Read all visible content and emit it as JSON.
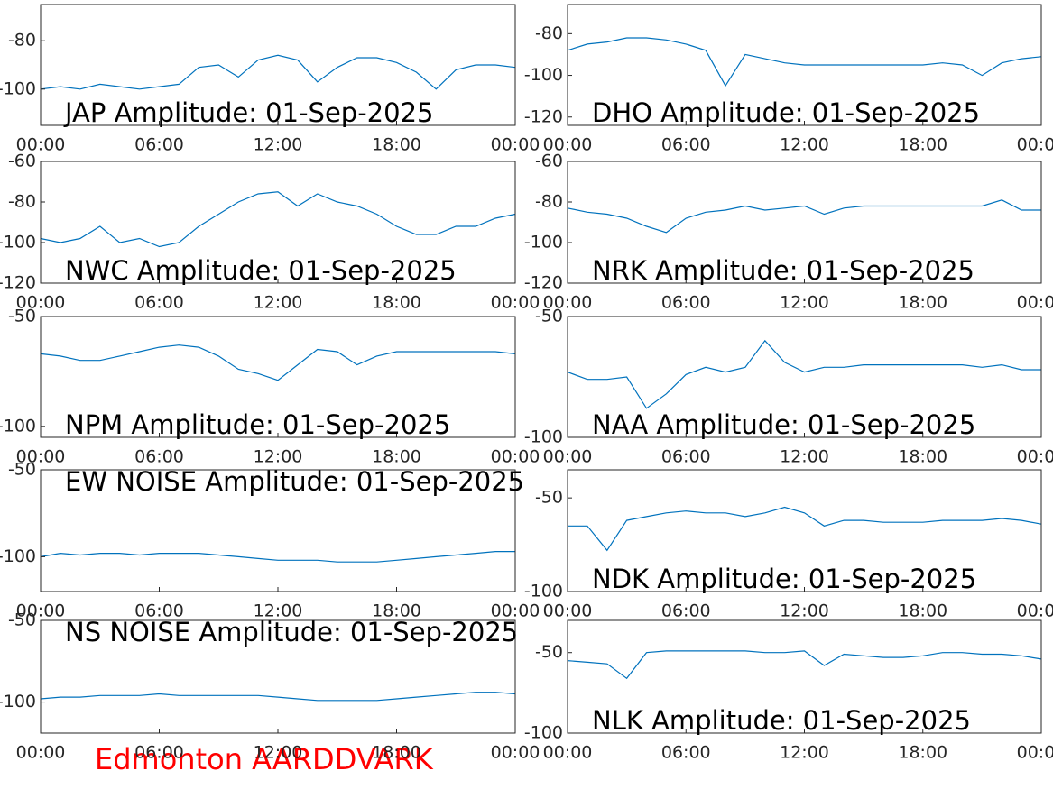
{
  "chart_data": [
    {
      "type": "line",
      "title": "JAP Amplitude: 01-Sep-2025",
      "color": "#0072bd",
      "x": [
        0,
        1,
        2,
        3,
        4,
        5,
        6,
        7,
        8,
        9,
        10,
        11,
        12,
        13,
        14,
        15,
        16,
        17,
        18,
        19,
        20,
        21,
        22,
        23,
        24
      ],
      "values": [
        -100,
        -99,
        -100,
        -98,
        -99,
        -100,
        -99,
        -98,
        -91,
        -90,
        -95,
        -88,
        -86,
        -88,
        -97,
        -91,
        -87,
        -87,
        -89,
        -93,
        -100,
        -92,
        -90,
        -90,
        -91
      ],
      "xlim": [
        0,
        24
      ],
      "xticks": [
        {
          "value": 0,
          "label": "00:00"
        },
        {
          "value": 6,
          "label": "06:00"
        },
        {
          "value": 12,
          "label": "12:00"
        },
        {
          "value": 18,
          "label": "18:00"
        },
        {
          "value": 24,
          "label": "00:00"
        }
      ],
      "ylim": [
        -115,
        -65
      ],
      "yticks": [
        -100,
        -80
      ]
    },
    {
      "type": "line",
      "title": "DHO Amplitude: 01-Sep-2025",
      "color": "#0072bd",
      "x": [
        0,
        1,
        2,
        3,
        4,
        5,
        6,
        7,
        8,
        9,
        10,
        11,
        12,
        13,
        14,
        15,
        16,
        17,
        18,
        19,
        20,
        21,
        22,
        23,
        24
      ],
      "values": [
        -88,
        -85,
        -84,
        -82,
        -82,
        -83,
        -85,
        -88,
        -105,
        -90,
        -92,
        -94,
        -95,
        -95,
        -95,
        -95,
        -95,
        -95,
        -95,
        -94,
        -95,
        -100,
        -94,
        -92,
        -91
      ],
      "xlim": [
        0,
        24
      ],
      "xticks": [
        {
          "value": 0,
          "label": "00:00"
        },
        {
          "value": 6,
          "label": "06:00"
        },
        {
          "value": 12,
          "label": "12:00"
        },
        {
          "value": 18,
          "label": "18:00"
        },
        {
          "value": 24,
          "label": "00:00"
        }
      ],
      "ylim": [
        -124,
        -66
      ],
      "yticks": [
        -120,
        -100,
        -80
      ]
    },
    {
      "type": "line",
      "title": "NWC Amplitude: 01-Sep-2025",
      "color": "#0072bd",
      "x": [
        0,
        1,
        2,
        3,
        4,
        5,
        6,
        7,
        8,
        9,
        10,
        11,
        12,
        13,
        14,
        15,
        16,
        17,
        18,
        19,
        20,
        21,
        22,
        23,
        24
      ],
      "values": [
        -98,
        -100,
        -98,
        -92,
        -100,
        -98,
        -102,
        -100,
        -92,
        -86,
        -80,
        -76,
        -75,
        -82,
        -76,
        -80,
        -82,
        -86,
        -92,
        -96,
        -96,
        -92,
        -92,
        -88,
        -86
      ],
      "xlim": [
        0,
        24
      ],
      "xticks": [
        {
          "value": 0,
          "label": "00:00"
        },
        {
          "value": 6,
          "label": "06:00"
        },
        {
          "value": 12,
          "label": "12:00"
        },
        {
          "value": 18,
          "label": "18:00"
        },
        {
          "value": 24,
          "label": "00:00"
        }
      ],
      "ylim": [
        -120,
        -60
      ],
      "yticks": [
        -120,
        -100,
        -80,
        -60
      ]
    },
    {
      "type": "line",
      "title": "NRK Amplitude: 01-Sep-2025",
      "color": "#0072bd",
      "x": [
        0,
        1,
        2,
        3,
        4,
        5,
        6,
        7,
        8,
        9,
        10,
        11,
        12,
        13,
        14,
        15,
        16,
        17,
        18,
        19,
        20,
        21,
        22,
        23,
        24
      ],
      "values": [
        -83,
        -85,
        -86,
        -88,
        -92,
        -95,
        -88,
        -85,
        -84,
        -82,
        -84,
        -83,
        -82,
        -86,
        -83,
        -82,
        -82,
        -82,
        -82,
        -82,
        -82,
        -82,
        -79,
        -84,
        -84
      ],
      "xlim": [
        0,
        24
      ],
      "xticks": [
        {
          "value": 0,
          "label": "00:00"
        },
        {
          "value": 6,
          "label": "06:00"
        },
        {
          "value": 12,
          "label": "12:00"
        },
        {
          "value": 18,
          "label": "18:00"
        },
        {
          "value": 24,
          "label": "00:00"
        }
      ],
      "ylim": [
        -120,
        -60
      ],
      "yticks": [
        -120,
        -100,
        -80,
        -60
      ]
    },
    {
      "type": "line",
      "title": "NPM Amplitude: 01-Sep-2025",
      "color": "#0072bd",
      "x": [
        0,
        1,
        2,
        3,
        4,
        5,
        6,
        7,
        8,
        9,
        10,
        11,
        12,
        13,
        14,
        15,
        16,
        17,
        18,
        19,
        20,
        21,
        22,
        23,
        24
      ],
      "values": [
        -67,
        -68,
        -70,
        -70,
        -68,
        -66,
        -64,
        -63,
        -64,
        -68,
        -74,
        -76,
        -79,
        -72,
        -65,
        -66,
        -72,
        -68,
        -66,
        -66,
        -66,
        -66,
        -66,
        -66,
        -67
      ],
      "xlim": [
        0,
        24
      ],
      "xticks": [
        {
          "value": 0,
          "label": "00:00"
        },
        {
          "value": 6,
          "label": "06:00"
        },
        {
          "value": 12,
          "label": "12:00"
        },
        {
          "value": 18,
          "label": "18:00"
        },
        {
          "value": 24,
          "label": "00:00"
        }
      ],
      "ylim": [
        -105,
        -50
      ],
      "yticks": [
        -100,
        -50
      ]
    },
    {
      "type": "line",
      "title": "NAA Amplitude: 01-Sep-2025",
      "color": "#0072bd",
      "x": [
        0,
        1,
        2,
        3,
        4,
        5,
        6,
        7,
        8,
        9,
        10,
        11,
        12,
        13,
        14,
        15,
        16,
        17,
        18,
        19,
        20,
        21,
        22,
        23,
        24
      ],
      "values": [
        -73,
        -76,
        -76,
        -75,
        -88,
        -82,
        -74,
        -71,
        -73,
        -71,
        -60,
        -69,
        -73,
        -71,
        -71,
        -70,
        -70,
        -70,
        -70,
        -70,
        -70,
        -71,
        -70,
        -72,
        -72
      ],
      "xlim": [
        0,
        24
      ],
      "xticks": [
        {
          "value": 0,
          "label": "00:00"
        },
        {
          "value": 6,
          "label": "06:00"
        },
        {
          "value": 12,
          "label": "12:00"
        },
        {
          "value": 18,
          "label": "18:00"
        },
        {
          "value": 24,
          "label": "00:00"
        }
      ],
      "ylim": [
        -100,
        -50
      ],
      "yticks": [
        -100,
        -50
      ]
    },
    {
      "type": "line",
      "title": "EW NOISE Amplitude: 01-Sep-2025",
      "color": "#0072bd",
      "x": [
        0,
        1,
        2,
        3,
        4,
        5,
        6,
        7,
        8,
        9,
        10,
        11,
        12,
        13,
        14,
        15,
        16,
        17,
        18,
        19,
        20,
        21,
        22,
        23,
        24
      ],
      "values": [
        -100,
        -98,
        -99,
        -98,
        -98,
        -99,
        -98,
        -98,
        -98,
        -99,
        -100,
        -101,
        -102,
        -102,
        -102,
        -103,
        -103,
        -103,
        -102,
        -101,
        -100,
        -99,
        -98,
        -97,
        -97
      ],
      "xlim": [
        0,
        24
      ],
      "xticks": [
        {
          "value": 0,
          "label": "00:00"
        },
        {
          "value": 6,
          "label": "06:00"
        },
        {
          "value": 12,
          "label": "12:00"
        },
        {
          "value": 18,
          "label": "18:00"
        },
        {
          "value": 24,
          "label": "00:00"
        }
      ],
      "ylim": [
        -120,
        -50
      ],
      "yticks": [
        -100,
        -50
      ]
    },
    {
      "type": "line",
      "title": "NDK Amplitude: 01-Sep-2025",
      "color": "#0072bd",
      "x": [
        0,
        1,
        2,
        3,
        4,
        5,
        6,
        7,
        8,
        9,
        10,
        11,
        12,
        13,
        14,
        15,
        16,
        17,
        18,
        19,
        20,
        21,
        22,
        23,
        24
      ],
      "values": [
        -65,
        -65,
        -78,
        -62,
        -60,
        -58,
        -57,
        -58,
        -58,
        -60,
        -58,
        -55,
        -58,
        -65,
        -62,
        -62,
        -63,
        -63,
        -63,
        -62,
        -62,
        -62,
        -61,
        -62,
        -64
      ],
      "xlim": [
        0,
        24
      ],
      "xticks": [
        {
          "value": 0,
          "label": "00:00"
        },
        {
          "value": 6,
          "label": "06:00"
        },
        {
          "value": 12,
          "label": "12:00"
        },
        {
          "value": 18,
          "label": "18:00"
        },
        {
          "value": 24,
          "label": "00:00"
        }
      ],
      "ylim": [
        -100,
        -35
      ],
      "yticks": [
        -100,
        -50
      ]
    },
    {
      "type": "line",
      "title": "NS NOISE Amplitude: 01-Sep-2025",
      "color": "#0072bd",
      "x": [
        0,
        1,
        2,
        3,
        4,
        5,
        6,
        7,
        8,
        9,
        10,
        11,
        12,
        13,
        14,
        15,
        16,
        17,
        18,
        19,
        20,
        21,
        22,
        23,
        24
      ],
      "values": [
        -98,
        -97,
        -97,
        -96,
        -96,
        -96,
        -95,
        -96,
        -96,
        -96,
        -96,
        -96,
        -97,
        -98,
        -99,
        -99,
        -99,
        -99,
        -98,
        -97,
        -96,
        -95,
        -94,
        -94,
        -95
      ],
      "xlim": [
        0,
        24
      ],
      "xticks": [
        {
          "value": 0,
          "label": "00:00"
        },
        {
          "value": 6,
          "label": "06:00"
        },
        {
          "value": 12,
          "label": "12:00"
        },
        {
          "value": 18,
          "label": "18:00"
        },
        {
          "value": 24,
          "label": "00:00"
        }
      ],
      "ylim": [
        -119,
        -50
      ],
      "yticks": [
        -100,
        -50
      ]
    },
    {
      "type": "line",
      "title": "NLK Amplitude: 01-Sep-2025",
      "color": "#0072bd",
      "x": [
        0,
        1,
        2,
        3,
        4,
        5,
        6,
        7,
        8,
        9,
        10,
        11,
        12,
        13,
        14,
        15,
        16,
        17,
        18,
        19,
        20,
        21,
        22,
        23,
        24
      ],
      "values": [
        -55,
        -56,
        -57,
        -66,
        -50,
        -49,
        -49,
        -49,
        -49,
        -49,
        -50,
        -50,
        -49,
        -58,
        -51,
        -52,
        -53,
        -53,
        -52,
        -50,
        -50,
        -51,
        -51,
        -52,
        -54
      ],
      "xlim": [
        0,
        24
      ],
      "xticks": [
        {
          "value": 0,
          "label": "00:00"
        },
        {
          "value": 6,
          "label": "06:00"
        },
        {
          "value": 12,
          "label": "12:00"
        },
        {
          "value": 18,
          "label": "18:00"
        },
        {
          "value": 24,
          "label": "00:00"
        }
      ],
      "ylim": [
        -100,
        -30
      ],
      "yticks": [
        -100,
        -50
      ]
    }
  ],
  "footer": "Edmonton AARDDVARK"
}
